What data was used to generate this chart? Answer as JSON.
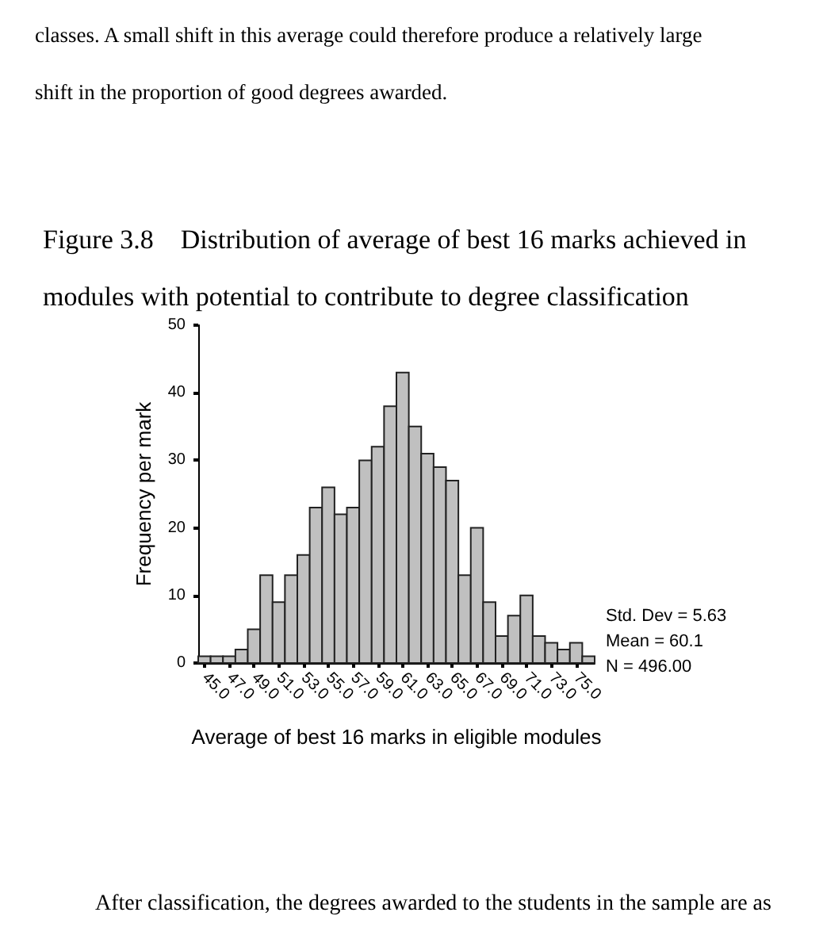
{
  "chart_data": {
    "type": "histogram",
    "title": "Figure 3.8    Distribution of average of best 16 marks achieved in modules with potential to contribute to degree classification",
    "xlabel": "Average of best 16 marks in eligible modules",
    "ylabel": "Frequency per mark",
    "bins": [
      44.5,
      45.5,
      46.5,
      47.5,
      48.5,
      49.5,
      50.5,
      51.5,
      52.5,
      53.5,
      54.5,
      55.5,
      56.5,
      57.5,
      58.5,
      59.5,
      60.5,
      61.5,
      62.5,
      63.5,
      64.5,
      65.5,
      66.5,
      67.5,
      68.5,
      69.5,
      70.5,
      71.5,
      72.5,
      73.5,
      74.5,
      75.5,
      76.5
    ],
    "values": [
      1,
      1,
      1,
      2,
      5,
      13,
      9,
      13,
      16,
      23,
      26,
      22,
      23,
      30,
      32,
      38,
      43,
      35,
      31,
      29,
      27,
      13,
      20,
      9,
      4,
      7,
      10,
      4,
      3,
      2,
      3,
      1
    ],
    "color": "#c0c0c0",
    "xlim": [
      44.5,
      76.5
    ],
    "xticks": [
      {
        "value": 45,
        "label": "45.0"
      },
      {
        "value": 47,
        "label": "47.0"
      },
      {
        "value": 49,
        "label": "49.0"
      },
      {
        "value": 51,
        "label": "51.0"
      },
      {
        "value": 53,
        "label": "53.0"
      },
      {
        "value": 55,
        "label": "55.0"
      },
      {
        "value": 57,
        "label": "57.0"
      },
      {
        "value": 59,
        "label": "59.0"
      },
      {
        "value": 61,
        "label": "61.0"
      },
      {
        "value": 63,
        "label": "63.0"
      },
      {
        "value": 65,
        "label": "65.0"
      },
      {
        "value": 67,
        "label": "67.0"
      },
      {
        "value": 69,
        "label": "69.0"
      },
      {
        "value": 71,
        "label": "71.0"
      },
      {
        "value": 73,
        "label": "73.0"
      },
      {
        "value": 75,
        "label": "75.0"
      }
    ],
    "ylim": [
      0,
      50
    ],
    "yticks": [
      0,
      10,
      20,
      30,
      40,
      50
    ],
    "annotations": [
      "classes. A small shift in this average could therefore produce a relatively large shift in the proportion of good degrees awarded.",
      "Std. Dev = 5.63",
      "Mean = 60.1",
      "N = 496.00",
      "After classification, the degrees awarded to the students in the sample are as"
    ]
  }
}
